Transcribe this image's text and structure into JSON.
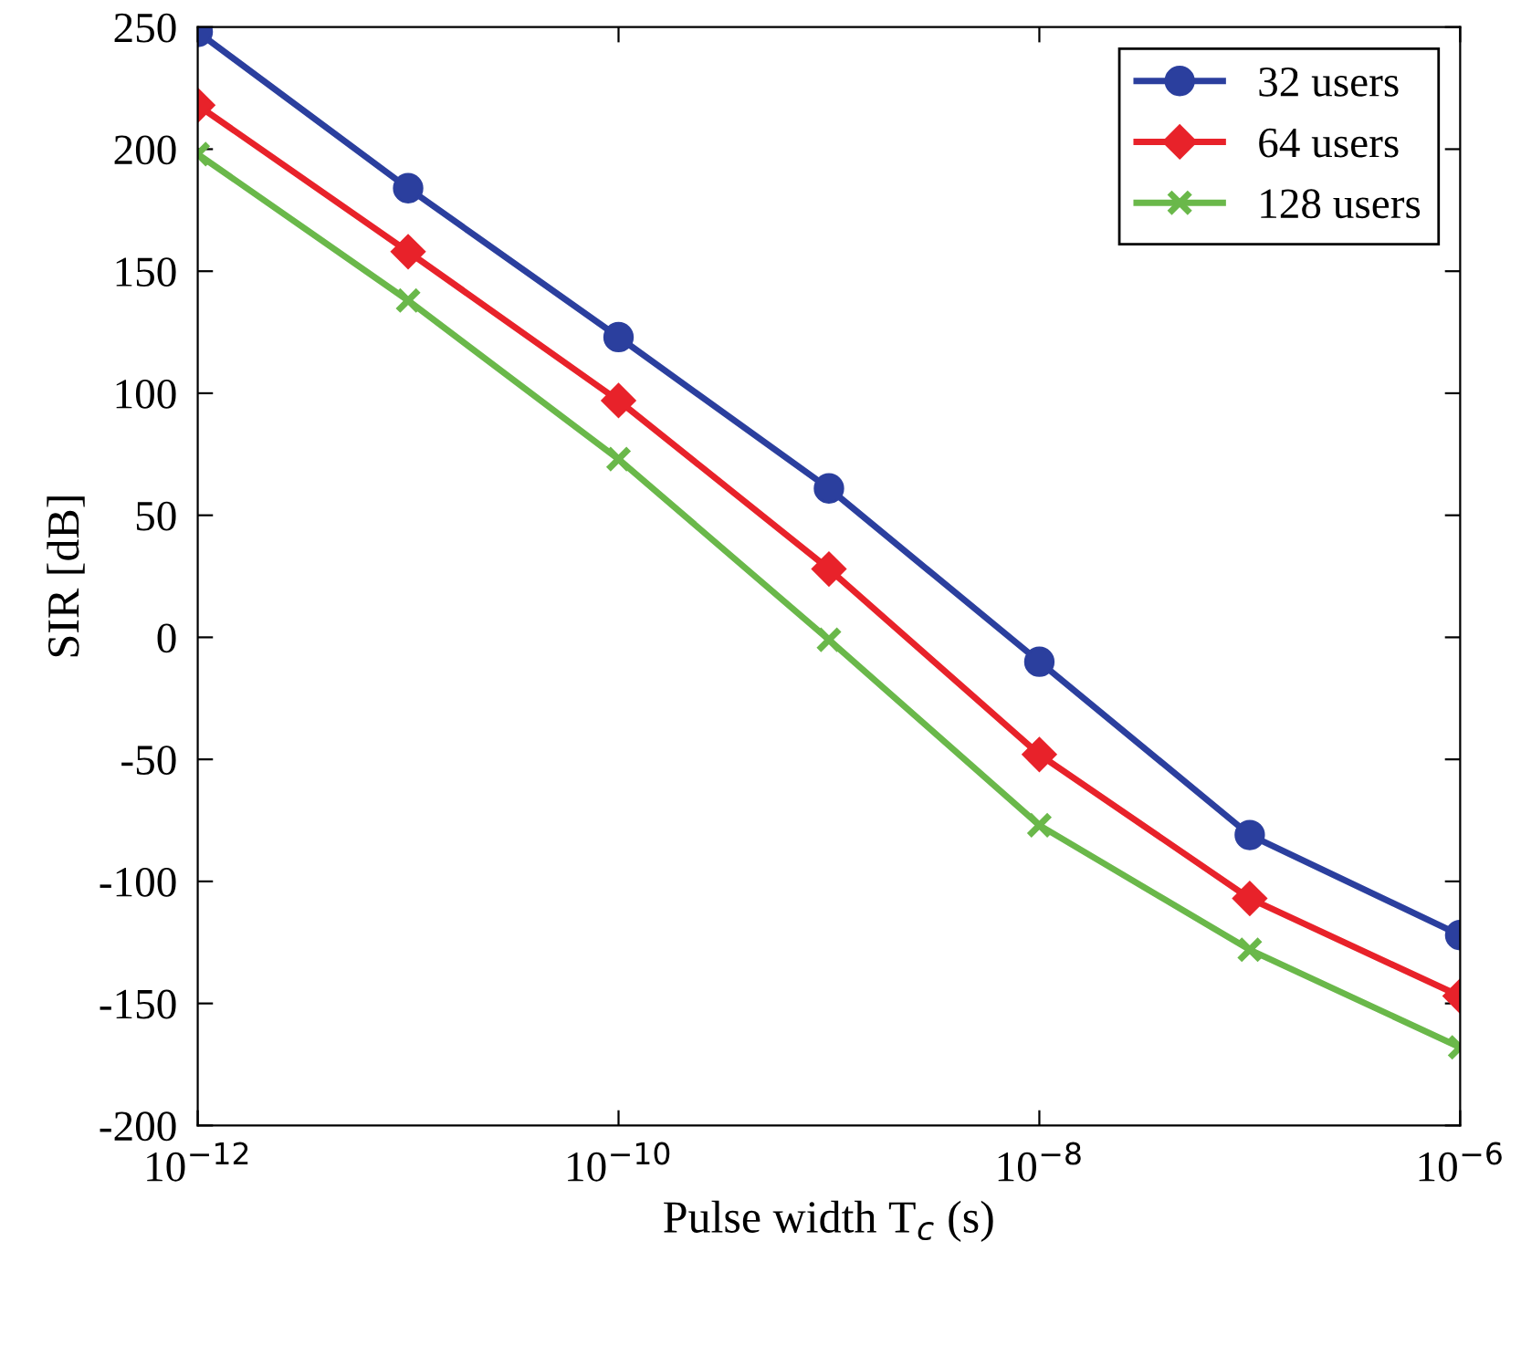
{
  "chart_data": {
    "type": "line",
    "xlabel": "Pulse width T$_{c}$ (s)",
    "ylabel": "SIR [dB]",
    "x": [
      1e-12,
      1e-11,
      1e-10,
      1e-09,
      1e-08,
      1e-07,
      1e-06
    ],
    "series": [
      {
        "name": "32 users",
        "color": "#2b3f9e",
        "marker": "circle",
        "values": [
          248,
          184,
          123,
          61,
          -10,
          -81,
          -122
        ]
      },
      {
        "name": "64 users",
        "color": "#e8222a",
        "marker": "diamond",
        "values": [
          218,
          158,
          97,
          28,
          -48,
          -107,
          -147
        ]
      },
      {
        "name": "128 users",
        "color": "#6ab84a",
        "marker": "cross",
        "values": [
          198,
          138,
          73,
          -1,
          -77,
          -128,
          -168
        ]
      }
    ],
    "log": "x",
    "xlim": [
      1e-12,
      1e-06
    ],
    "xticks": [
      {
        "value": 1e-12,
        "label": "10$^{−12}$"
      },
      {
        "value": 1e-10,
        "label": "10$^{−10}$"
      },
      {
        "value": 1e-08,
        "label": "10$^{−8}$"
      },
      {
        "value": 1e-06,
        "label": "10$^{−6}$"
      }
    ],
    "ylim": [
      -200,
      250
    ],
    "yticks": [
      -200,
      -150,
      -100,
      -50,
      0,
      50,
      100,
      150,
      200,
      250
    ],
    "grid": false,
    "legend": "top right",
    "line_style": "solid"
  }
}
